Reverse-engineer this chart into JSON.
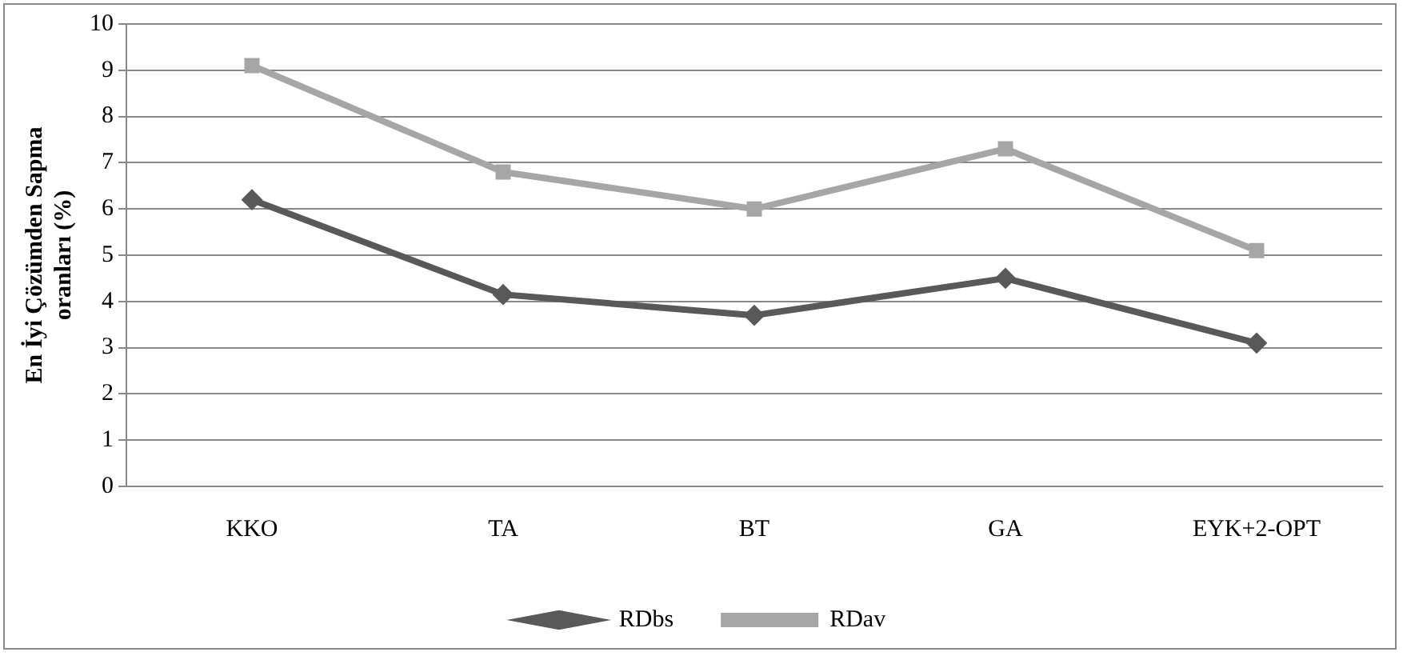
{
  "chart_data": {
    "type": "line",
    "ylabel": "En İyi Çözümden Sapma oranları (%)",
    "categories": [
      "KKO",
      "TA",
      "BT",
      "GA",
      "EYK+2-OPT"
    ],
    "series": [
      {
        "name": "RDbs",
        "color": "#595959",
        "marker": "diamond",
        "values": [
          6.2,
          4.15,
          3.7,
          4.5,
          3.1
        ]
      },
      {
        "name": "RDav",
        "color": "#a6a6a6",
        "marker": "square",
        "values": [
          9.1,
          6.8,
          6.0,
          7.3,
          5.1
        ]
      }
    ],
    "ylim": [
      0,
      10
    ],
    "yticks": [
      0,
      1,
      2,
      3,
      4,
      5,
      6,
      7,
      8,
      9,
      10
    ],
    "grid": "y",
    "legend": "bottom",
    "line_style": "solid"
  }
}
